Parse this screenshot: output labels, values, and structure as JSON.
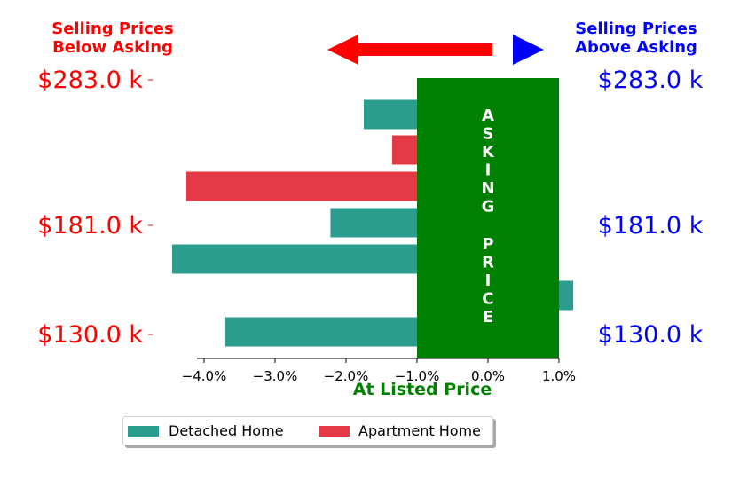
{
  "chart_data": {
    "type": "bar",
    "orientation": "horizontal",
    "x_ticks": [
      "−4.0%",
      "−3.0%",
      "−2.0%",
      "−1.0%",
      "0.0%",
      "1.0%"
    ],
    "x_tick_values": [
      -4,
      -3,
      -2,
      -1,
      0,
      1
    ],
    "xlim": [
      -4.6,
      1.3
    ],
    "xlabel": "At Listed Price",
    "xlabel_color": "#008000",
    "left_header": "Selling Prices\nBelow Asking",
    "right_header": "Selling Prices\nAbove Asking",
    "left_color": "#ff0000",
    "right_color": "#0000ff",
    "y_labels_left": [
      "$283.0 k",
      "$181.0 k",
      "$130.0 k"
    ],
    "y_labels_right": [
      "$283.0 k",
      "$181.0 k",
      "$130.0 k"
    ],
    "asking_band": {
      "label": "ASKING PRICE",
      "x_start": -1.0,
      "x_end": 1.0,
      "color": "#008000"
    },
    "bars": [
      {
        "series": "Detached Home",
        "value": -1.75
      },
      {
        "series": "Apartment Home",
        "value": -1.35
      },
      {
        "series": "Apartment Home",
        "value": -4.25
      },
      {
        "series": "Detached Home",
        "value": -2.22
      },
      {
        "series": "Detached Home",
        "value": -4.45
      },
      {
        "series": "Detached Home",
        "value": 1.2
      },
      {
        "series": "Detached Home",
        "value": -3.7
      }
    ],
    "series": [
      {
        "name": "Detached Home",
        "color": "#2a9d8f"
      },
      {
        "name": "Apartment Home",
        "color": "#e63946"
      }
    ],
    "legend_position": "bottom"
  }
}
